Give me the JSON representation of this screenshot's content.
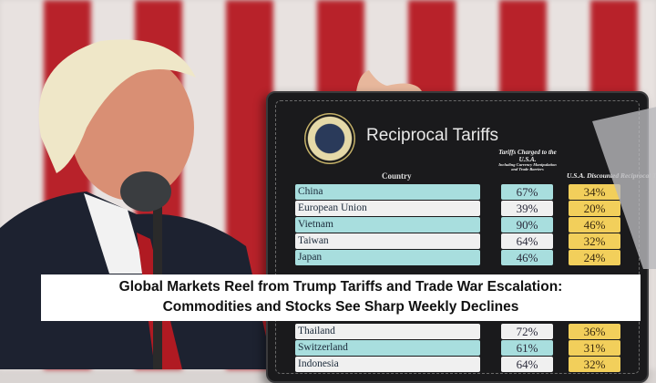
{
  "board": {
    "title": "Reciprocal Tariffs",
    "col_country": "Country",
    "col_charged": "Tariffs Charged to the U.S.A.",
    "col_charged_note": "Including Currency Manipulation and Trade Barriers",
    "col_discounted": "U.S.A. Discounted Reciprocal Tariffs",
    "rows": [
      {
        "country": "China",
        "charged": "67%",
        "discounted": "34%"
      },
      {
        "country": "European Union",
        "charged": "39%",
        "discounted": "20%"
      },
      {
        "country": "Vietnam",
        "charged": "90%",
        "discounted": "46%"
      },
      {
        "country": "Taiwan",
        "charged": "64%",
        "discounted": "32%"
      },
      {
        "country": "Japan",
        "charged": "46%",
        "discounted": "24%"
      },
      {
        "country": "Thailand",
        "charged": "72%",
        "discounted": "36%"
      },
      {
        "country": "Switzerland",
        "charged": "61%",
        "discounted": "31%"
      },
      {
        "country": "Indonesia",
        "charged": "64%",
        "discounted": "32%"
      }
    ]
  },
  "caption": {
    "line1": "Global Markets Reel from Trump Tariffs and Trade War Escalation:",
    "line2": "Commodities and Stocks See Sharp Weekly Declines"
  }
}
